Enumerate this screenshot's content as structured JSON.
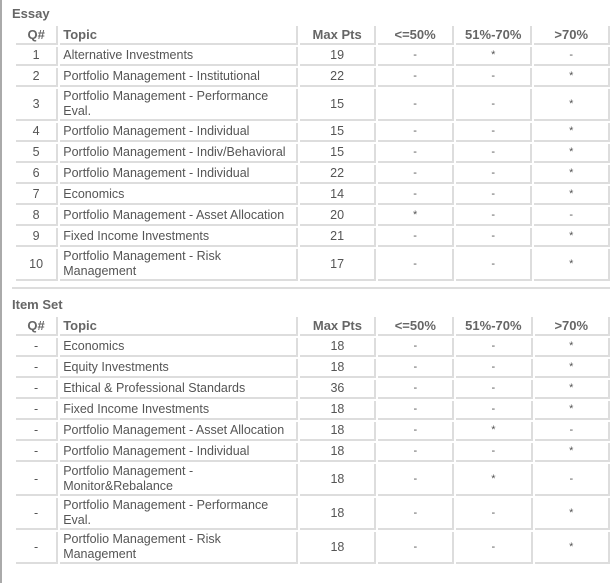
{
  "columns": [
    "Q#",
    "Topic",
    "Max Pts",
    "<=50%",
    "51%-70%",
    ">70%"
  ],
  "essay": {
    "title": "Essay",
    "rows": [
      [
        "1",
        "Alternative Investments",
        "19",
        "-",
        "*",
        "-"
      ],
      [
        "2",
        "Portfolio Management - Institutional",
        "22",
        "-",
        "-",
        "*"
      ],
      [
        "3",
        "Portfolio Management - Performance Eval.",
        "15",
        "-",
        "-",
        "*"
      ],
      [
        "4",
        "Portfolio Management - Individual",
        "15",
        "-",
        "-",
        "*"
      ],
      [
        "5",
        "Portfolio Management - Indiv/Behavioral",
        "15",
        "-",
        "-",
        "*"
      ],
      [
        "6",
        "Portfolio Management - Individual",
        "22",
        "-",
        "-",
        "*"
      ],
      [
        "7",
        "Economics",
        "14",
        "-",
        "-",
        "*"
      ],
      [
        "8",
        "Portfolio Management - Asset Allocation",
        "20",
        "*",
        "-",
        "-"
      ],
      [
        "9",
        "Fixed Income Investments",
        "21",
        "-",
        "-",
        "*"
      ],
      [
        "10",
        "Portfolio Management - Risk Management",
        "17",
        "-",
        "-",
        "*"
      ]
    ]
  },
  "item_set": {
    "title": "Item Set",
    "rows": [
      [
        "-",
        "Economics",
        "18",
        "-",
        "-",
        "*"
      ],
      [
        "-",
        "Equity Investments",
        "18",
        "-",
        "-",
        "*"
      ],
      [
        "-",
        "Ethical & Professional Standards",
        "36",
        "-",
        "-",
        "*"
      ],
      [
        "-",
        "Fixed Income Investments",
        "18",
        "-",
        "-",
        "*"
      ],
      [
        "-",
        "Portfolio Management - Asset Allocation",
        "18",
        "-",
        "*",
        "-"
      ],
      [
        "-",
        "Portfolio Management - Individual",
        "18",
        "-",
        "-",
        "*"
      ],
      [
        "-",
        "Portfolio Management - Monitor&Rebalance",
        "18",
        "-",
        "*",
        "-"
      ],
      [
        "-",
        "Portfolio Management - Performance Eval.",
        "18",
        "-",
        "-",
        "*"
      ],
      [
        "-",
        "Portfolio Management - Risk Management",
        "18",
        "-",
        "-",
        "*"
      ]
    ]
  }
}
